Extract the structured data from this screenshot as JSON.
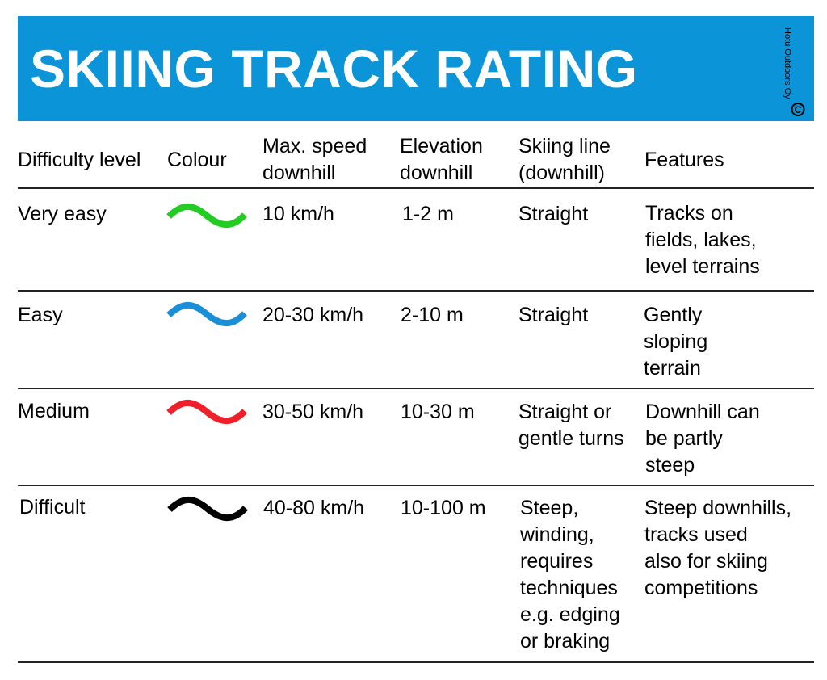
{
  "banner": {
    "title": "SKIING TRACK RATING",
    "credit": "Hotu Outdoors Oy",
    "copyright_symbol": "C",
    "background_color": "#0b95d8"
  },
  "headers": {
    "level": "Difficulty level",
    "colour": "Colour",
    "speed": [
      "Max. speed",
      "downhill"
    ],
    "elevation": [
      "Elevation",
      "downhill"
    ],
    "line": [
      "Skiing line",
      "(downhill)"
    ],
    "features": "Features"
  },
  "rows": [
    {
      "level": "Very easy",
      "colour": "#22cc22",
      "speed": "10 km/h",
      "elevation": "1-2 m",
      "line": [
        "Straight"
      ],
      "features": [
        "Tracks on",
        "fields, lakes,",
        "level terrains"
      ]
    },
    {
      "level": "Easy",
      "colour": "#1a8fd8",
      "speed": "20-30 km/h",
      "elevation": "2-10 m",
      "line": [
        "Straight"
      ],
      "features": [
        "Gently",
        "sloping",
        "terrain"
      ]
    },
    {
      "level": "Medium",
      "colour": "#f0202a",
      "speed": "30-50 km/h",
      "elevation": "10-30 m",
      "line": [
        "Straight or",
        "gentle turns"
      ],
      "features": [
        "Downhill can",
        "be partly",
        "steep"
      ]
    },
    {
      "level": "Difficult",
      "colour": "#000000",
      "speed": "40-80 km/h",
      "elevation": "10-100 m",
      "line": [
        "Steep,",
        "winding,",
        "requires",
        "techniques",
        "e.g. edging",
        "or braking"
      ],
      "features": [
        "Steep downhills,",
        "tracks used",
        "also for skiing",
        "competitions"
      ]
    }
  ]
}
